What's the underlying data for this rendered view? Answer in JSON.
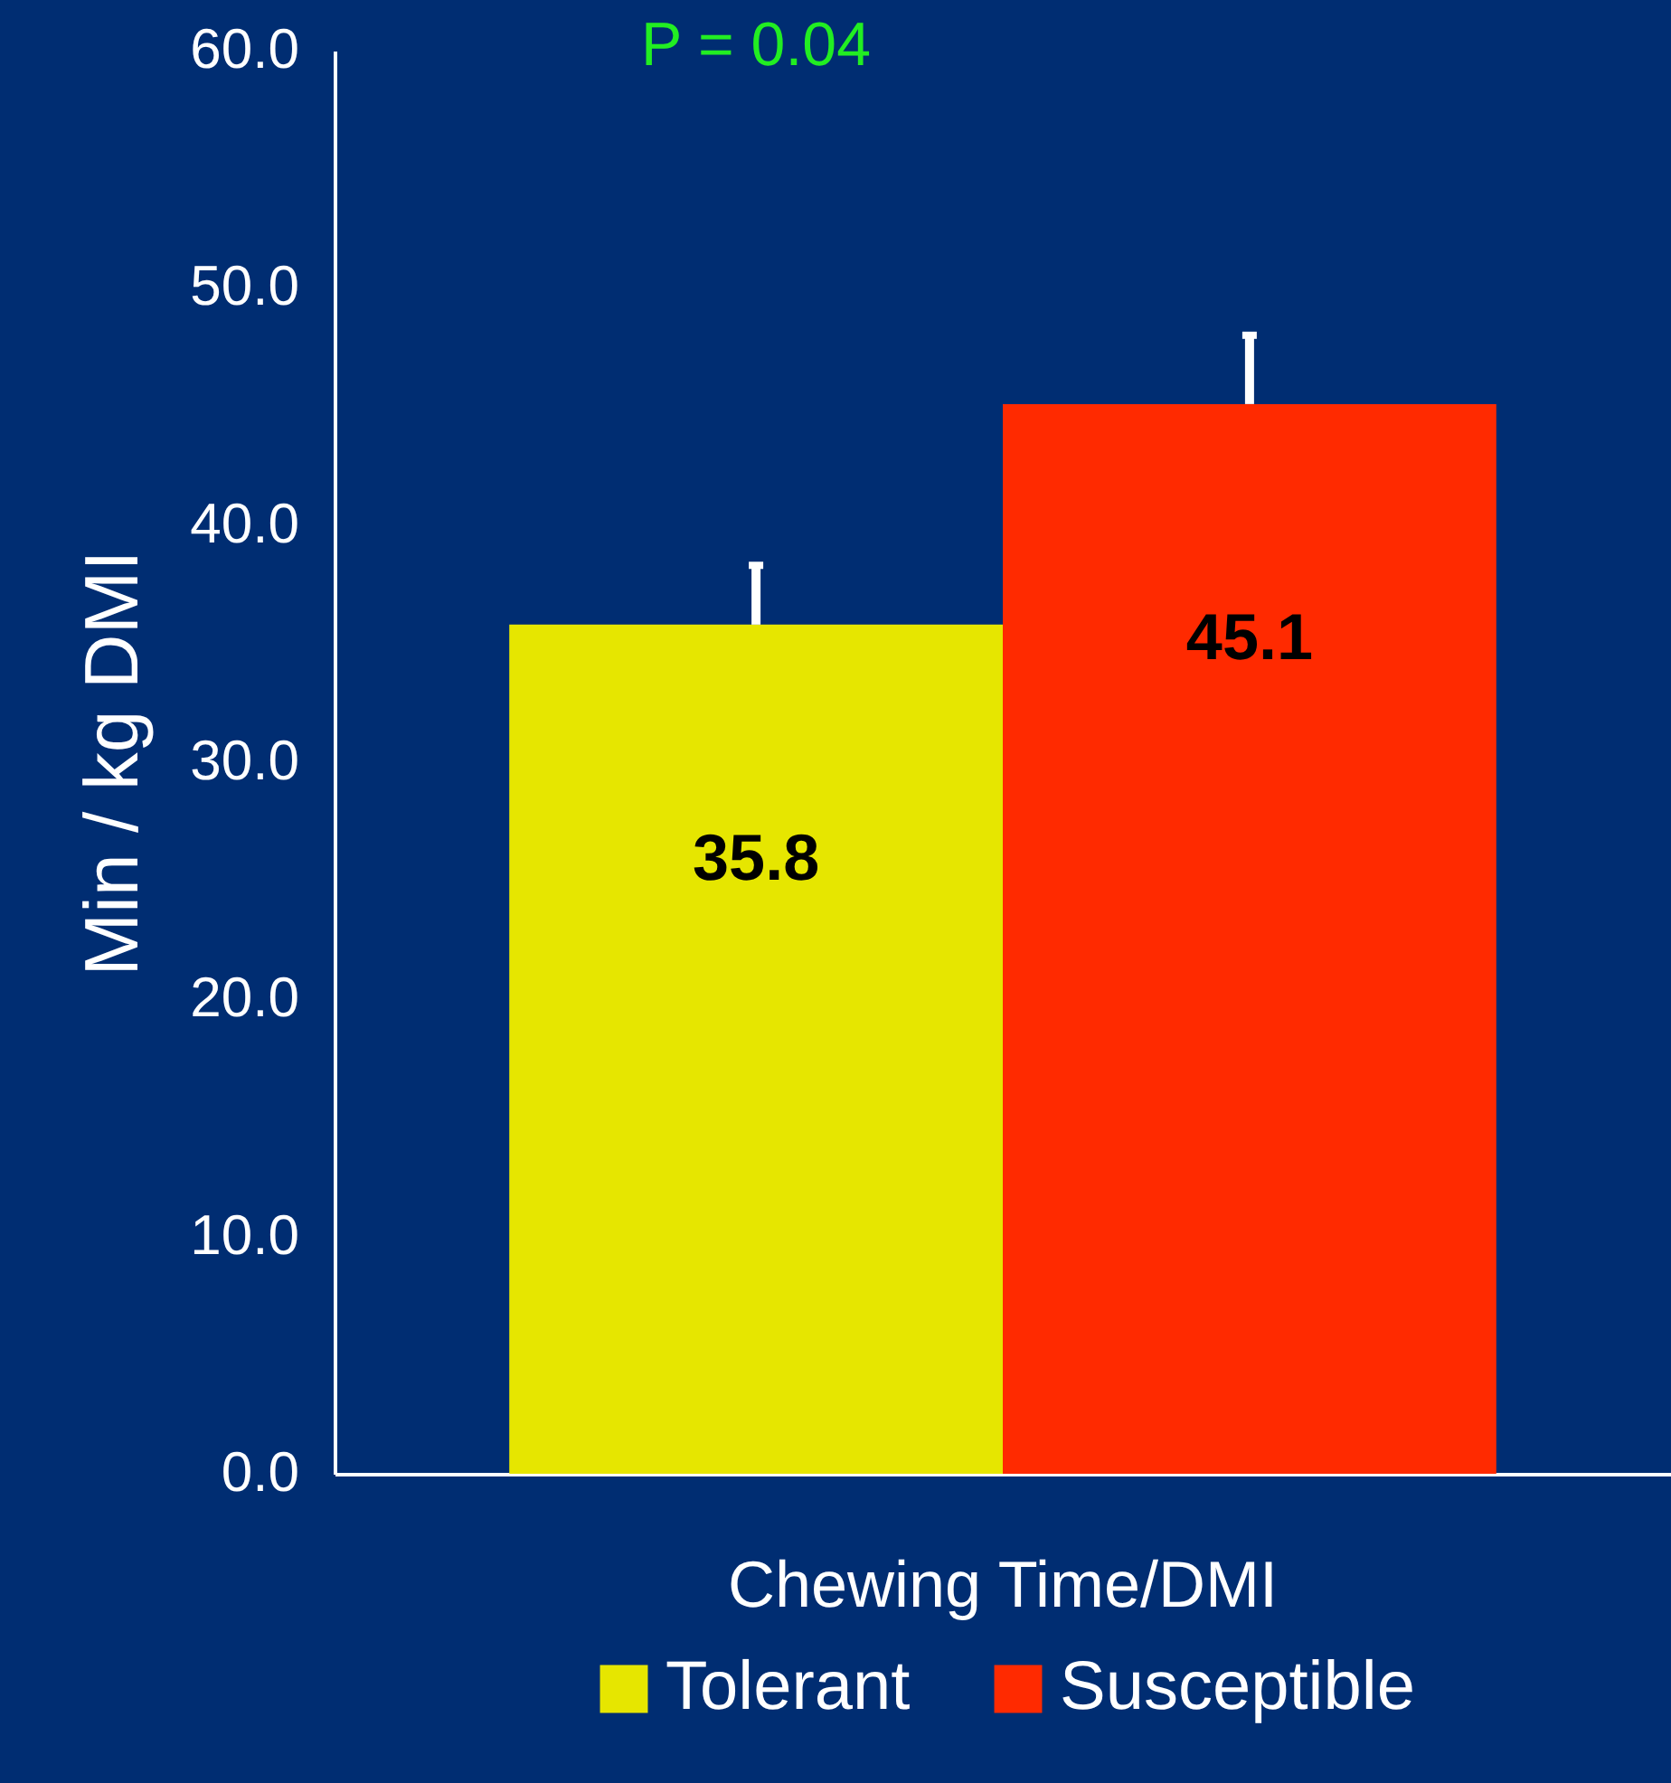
{
  "chart_data": {
    "type": "bar",
    "ylabel": "Min / kg DMI",
    "categories": [
      "Chewing Time/DMI"
    ],
    "series": [
      {
        "name": "Tolerant",
        "color": "#e6e600",
        "values": [
          35.8
        ],
        "errors": [
          2.5
        ]
      },
      {
        "name": "Susceptible",
        "color": "#ff2a00",
        "values": [
          45.1
        ],
        "errors": [
          2.9
        ]
      }
    ],
    "ylim": [
      0,
      60
    ],
    "yticks": [
      {
        "value": 0,
        "label": "0.0"
      },
      {
        "value": 10,
        "label": "10.0"
      },
      {
        "value": 20,
        "label": "20.0"
      },
      {
        "value": 30,
        "label": "30.0"
      },
      {
        "value": 40,
        "label": "40.0"
      },
      {
        "value": 50,
        "label": "50.0"
      },
      {
        "value": 60,
        "label": "60.0"
      }
    ],
    "data_labels": true,
    "legend": "bottom",
    "grid": false,
    "annotations": [
      "P = 0.04"
    ]
  }
}
